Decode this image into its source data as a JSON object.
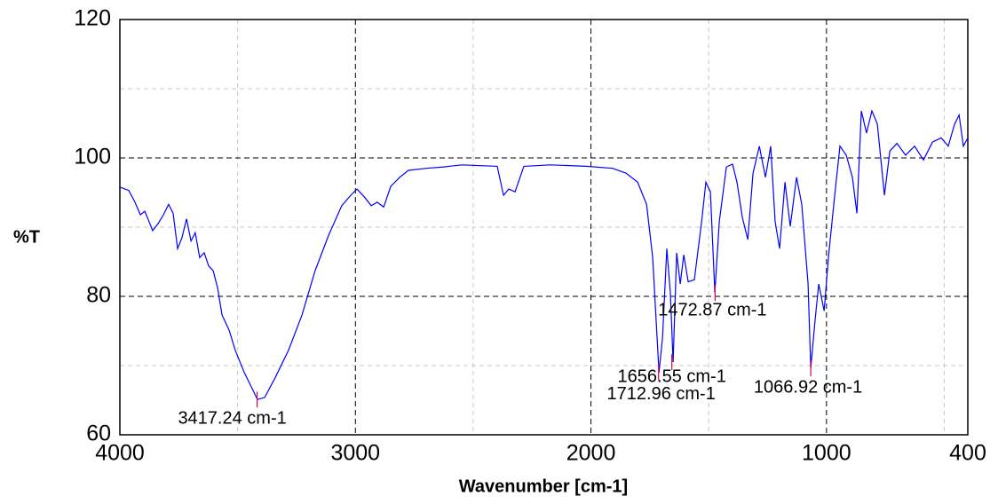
{
  "chart_data": {
    "type": "line",
    "xlabel": "Wavenumber [cm-1]",
    "ylabel": "%T",
    "xlim": [
      4000,
      400
    ],
    "ylim": [
      60,
      120
    ],
    "xticks": [
      4000,
      3000,
      2000,
      1000,
      400
    ],
    "yticks": [
      60,
      80,
      100,
      120
    ],
    "minor_xticks": [
      3500,
      2500,
      1500,
      500
    ],
    "minor_yticks": [
      70,
      90,
      110
    ],
    "grid": true,
    "series": [
      {
        "color": "#0000ff",
        "x": [
          4000,
          3962,
          3936,
          3913,
          3894,
          3876,
          3861,
          3838,
          3815,
          3793,
          3774,
          3755,
          3736,
          3717,
          3698,
          3680,
          3661,
          3642,
          3623,
          3604,
          3585,
          3566,
          3536,
          3510,
          3472,
          3434,
          3416,
          3385,
          3340,
          3284,
          3227,
          3171,
          3114,
          3058,
          3020,
          2993,
          2963,
          2933,
          2907,
          2880,
          2850,
          2812,
          2775,
          2699,
          2624,
          2548,
          2398,
          2371,
          2349,
          2322,
          2285,
          2171,
          2020,
          1908,
          1851,
          1802,
          1764,
          1738,
          1711,
          1696,
          1678,
          1663,
          1651,
          1636,
          1621,
          1606,
          1587,
          1561,
          1530,
          1512,
          1493,
          1474,
          1455,
          1425,
          1399,
          1380,
          1357,
          1334,
          1312,
          1285,
          1259,
          1237,
          1218,
          1199,
          1176,
          1154,
          1127,
          1105,
          1078,
          1067,
          1048,
          1033,
          1010,
          992,
          965,
          943,
          916,
          890,
          871,
          852,
          830,
          807,
          784,
          754,
          731,
          701,
          664,
          626,
          588,
          550,
          513,
          483,
          456,
          437,
          419,
          400
        ],
        "values": [
          95.8,
          95.3,
          93.6,
          91.8,
          92.3,
          90.8,
          89.5,
          90.5,
          91.8,
          93.3,
          92,
          86.9,
          88.5,
          91.2,
          88,
          89.2,
          85.6,
          86.3,
          84.4,
          83.7,
          81.2,
          77.3,
          75.1,
          72.2,
          69,
          66.4,
          65.1,
          65.4,
          68.3,
          72.2,
          77.3,
          83.7,
          88.8,
          93.1,
          94.6,
          95.5,
          94.4,
          93.1,
          93.6,
          92.9,
          95.9,
          97.2,
          98.2,
          98.5,
          98.7,
          99,
          98.8,
          94.6,
          95.5,
          95.1,
          98.8,
          99,
          98.8,
          98.5,
          97.8,
          96.5,
          93.3,
          85.6,
          69,
          74.1,
          86.9,
          80.5,
          70.5,
          86.3,
          81.8,
          86,
          82.1,
          82.4,
          90.8,
          96.5,
          95.1,
          80.5,
          90.8,
          98.7,
          99.1,
          96.5,
          91.4,
          88.2,
          97.8,
          101.7,
          97.2,
          101.7,
          90.8,
          86.9,
          96.5,
          90.1,
          97.2,
          93.3,
          81.8,
          69.6,
          76.7,
          81.8,
          77.9,
          85.6,
          94.6,
          101.7,
          100.4,
          97.2,
          92,
          106.8,
          103.6,
          106.8,
          104.9,
          94.6,
          101,
          102.1,
          100.4,
          101.7,
          99.7,
          102.3,
          102.9,
          101.7,
          104.9,
          106.2,
          101.7,
          102.9
        ]
      }
    ],
    "annotations": [
      {
        "text": "3417.24 cm-1",
        "x": 3417.24,
        "y": 65.1
      },
      {
        "text": "1712.96 cm-1",
        "x": 1712.96,
        "y": 69
      },
      {
        "text": "1656.55 cm-1",
        "x": 1656.55,
        "y": 70.5
      },
      {
        "text": "1472.87 cm-1",
        "x": 1472.87,
        "y": 80.5
      },
      {
        "text": "1066.92 cm-1",
        "x": 1066.92,
        "y": 69.6
      }
    ]
  }
}
